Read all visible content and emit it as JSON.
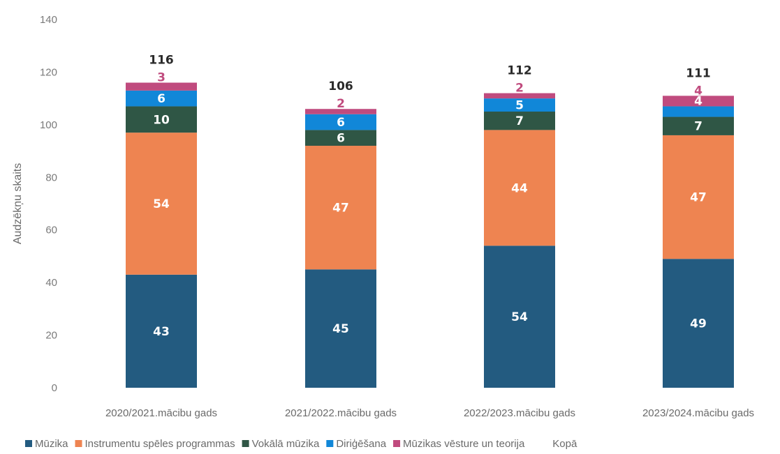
{
  "chart_data": {
    "type": "bar",
    "stacked": true,
    "categories": [
      "2020/2021.mācibu gads",
      "2021/2022.mācibu gads",
      "2022/2023.mācibu gads",
      "2023/2024.mācibu gads"
    ],
    "series": [
      {
        "name": "Mūzika",
        "values": [
          43,
          45,
          54,
          49
        ],
        "color": "#235b80",
        "label_color": "#ffffff"
      },
      {
        "name": "Instrumentu spēles programmas",
        "values": [
          54,
          47,
          44,
          47
        ],
        "color": "#ee8451",
        "label_color": "#ffffff"
      },
      {
        "name": "Vokālā mūzika",
        "values": [
          10,
          6,
          7,
          7
        ],
        "color": "#2f5645",
        "label_color": "#ffffff"
      },
      {
        "name": "Diriģēšana",
        "values": [
          6,
          6,
          5,
          4
        ],
        "color": "#1187d8",
        "label_color": "#ffffff"
      },
      {
        "name": "Mūzikas vēsture un teorija",
        "values": [
          3,
          2,
          2,
          4
        ],
        "color": "#c04b7e",
        "label_color": "#c04b7e"
      }
    ],
    "totals": {
      "name": "Kopā",
      "values": [
        116,
        106,
        112,
        111
      ]
    },
    "ylabel": "Audzēkņu skaits",
    "xlabel": "",
    "ylim": [
      0,
      140
    ],
    "yticks": [
      0,
      20,
      40,
      60,
      80,
      100,
      120,
      140
    ],
    "grid": false,
    "legend_position": "bottom"
  }
}
